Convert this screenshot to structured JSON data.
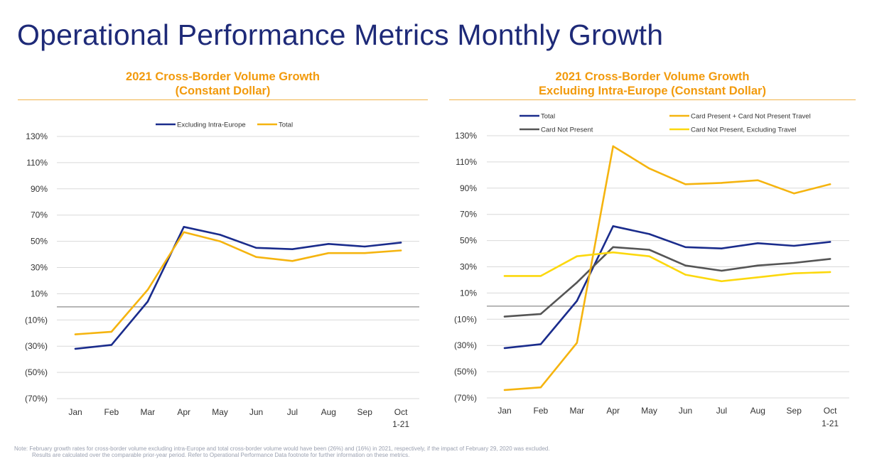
{
  "page": {
    "title": "Operational Performance Metrics Monthly Growth",
    "footnote": {
      "line1": "Note: February growth rates for cross-border volume excluding intra-Europe and total cross-border volume would have been (26%) and (16%) in 2021, respectively, if the impact of February 29, 2020 was excluded.",
      "line2": "Results are calculated over the comparable prior-year period. Refer to Operational Performance Data footnote for further information on these metrics."
    }
  },
  "colors": {
    "title": "#1e2a78",
    "chart_title": "#f29a0c",
    "navy": "#1a2c8c",
    "gold": "#f5b40f",
    "gray": "#555555",
    "yellow": "#fcd80d"
  },
  "chart_data": [
    {
      "type": "line",
      "title": "2021 Cross-Border Volume Growth",
      "subtitle": "(Constant Dollar)",
      "categories": [
        "Jan",
        "Feb",
        "Mar",
        "Apr",
        "May",
        "Jun",
        "Jul",
        "Aug",
        "Sep",
        "Oct"
      ],
      "category_sublabels": [
        "",
        "",
        "",
        "",
        "",
        "",
        "",
        "",
        "",
        "1-21"
      ],
      "ylim": [
        -70,
        130
      ],
      "yticks": [
        130,
        110,
        90,
        70,
        50,
        30,
        10,
        -10,
        -30,
        -50,
        -70
      ],
      "ytick_labels": [
        "130%",
        "110%",
        "90%",
        "70%",
        "50%",
        "30%",
        "10%",
        "(10%)",
        "(30%)",
        "(50%)",
        "(70%)"
      ],
      "grid": true,
      "legend_position": "top",
      "series": [
        {
          "name": "Excluding Intra-Europe",
          "color": "#1a2c8c",
          "values": [
            -32,
            -29,
            4,
            61,
            55,
            45,
            44,
            48,
            46,
            49
          ]
        },
        {
          "name": "Total",
          "color": "#f5b40f",
          "values": [
            -21,
            -19,
            13,
            57,
            50,
            38,
            35,
            41,
            41,
            43
          ]
        }
      ]
    },
    {
      "type": "line",
      "title": "2021 Cross-Border Volume Growth",
      "subtitle": "Excluding Intra-Europe (Constant Dollar)",
      "categories": [
        "Jan",
        "Feb",
        "Mar",
        "Apr",
        "May",
        "Jun",
        "Jul",
        "Aug",
        "Sep",
        "Oct"
      ],
      "category_sublabels": [
        "",
        "",
        "",
        "",
        "",
        "",
        "",
        "",
        "",
        "1-21"
      ],
      "ylim": [
        -70,
        130
      ],
      "yticks": [
        130,
        110,
        90,
        70,
        50,
        30,
        10,
        -10,
        -30,
        -50,
        -70
      ],
      "ytick_labels": [
        "130%",
        "110%",
        "90%",
        "70%",
        "50%",
        "30%",
        "10%",
        "(10%)",
        "(30%)",
        "(50%)",
        "(70%)"
      ],
      "grid": true,
      "legend_position": "top",
      "series": [
        {
          "name": "Total",
          "color": "#1a2c8c",
          "values": [
            -32,
            -29,
            4,
            61,
            55,
            45,
            44,
            48,
            46,
            49
          ]
        },
        {
          "name": "Card Not Present",
          "color": "#555555",
          "values": [
            -8,
            -6,
            18,
            45,
            43,
            31,
            27,
            31,
            33,
            36
          ]
        },
        {
          "name": "Card Present + Card Not Present Travel",
          "color": "#f5b40f",
          "values": [
            -64,
            -62,
            -28,
            122,
            105,
            93,
            94,
            96,
            86,
            93
          ]
        },
        {
          "name": "Card Not Present, Excluding Travel",
          "color": "#fcd80d",
          "values": [
            23,
            23,
            38,
            41,
            38,
            24,
            19,
            22,
            25,
            26
          ]
        }
      ]
    }
  ]
}
